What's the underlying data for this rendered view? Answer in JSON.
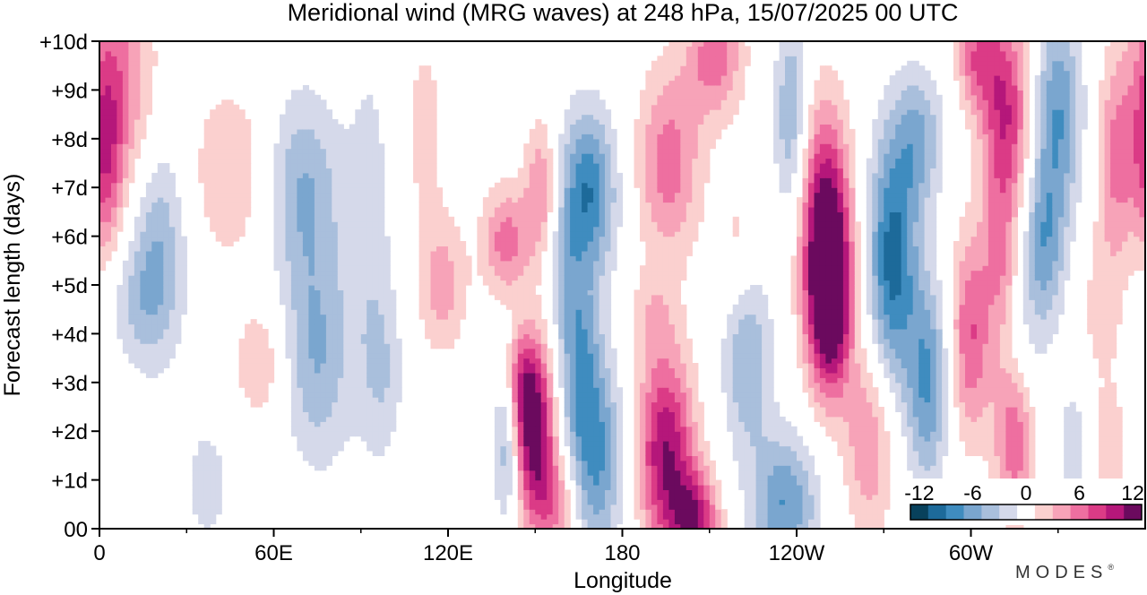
{
  "chart_data": {
    "type": "heatmap",
    "title": "Meridional wind (MRG waves) at  248 hPa,  15/07/2025  00 UTC",
    "xlabel": "Longitude",
    "ylabel": "Forecast length (days)",
    "x_ticks": [
      {
        "lon": 0,
        "label": "0"
      },
      {
        "lon": 60,
        "label": "60E"
      },
      {
        "lon": 120,
        "label": "120E"
      },
      {
        "lon": 180,
        "label": "180"
      },
      {
        "lon": 240,
        "label": "120W"
      },
      {
        "lon": 300,
        "label": "60W"
      }
    ],
    "x_minor_ticks": [
      30,
      90,
      150,
      210,
      270,
      330
    ],
    "xlim": [
      0,
      360
    ],
    "y_ticks": [
      {
        "day": 0,
        "label": "00"
      },
      {
        "day": 1,
        "label": "+1d"
      },
      {
        "day": 2,
        "label": "+2d"
      },
      {
        "day": 3,
        "label": "+3d"
      },
      {
        "day": 4,
        "label": "+4d"
      },
      {
        "day": 5,
        "label": "+5d"
      },
      {
        "day": 6,
        "label": "+6d"
      },
      {
        "day": 7,
        "label": "+7d"
      },
      {
        "day": 8,
        "label": "+8d"
      },
      {
        "day": 9,
        "label": "+9d"
      },
      {
        "day": 10,
        "label": "+10d"
      }
    ],
    "ylim": [
      0,
      10
    ],
    "colorbar": {
      "labels": [
        {
          "value": -12,
          "label": "-12"
        },
        {
          "value": -6,
          "label": "-6"
        },
        {
          "value": 0,
          "label": "0"
        },
        {
          "value": 6,
          "label": "6"
        },
        {
          "value": 12,
          "label": "12"
        }
      ],
      "levels": [
        -14,
        -12,
        -10,
        -8,
        -6,
        -4,
        -2,
        2,
        4,
        6,
        8,
        10,
        12,
        14
      ],
      "colors": [
        "#08415c",
        "#1d6a9a",
        "#3f8cbf",
        "#7aa6cf",
        "#a9bfdc",
        "#d5d9ea",
        "#ffffff",
        "#fbd0cf",
        "#f7a3b8",
        "#ee6fa0",
        "#db3b86",
        "#b5177a",
        "#6b0a5e"
      ]
    },
    "blobs": [
      {
        "lon": 6,
        "day": 9.0,
        "rx": 9,
        "ry": 1.8,
        "peak": 7
      },
      {
        "lon": 2,
        "day": 7.5,
        "rx": 4,
        "ry": 1.5,
        "peak": 6
      },
      {
        "lon": 20,
        "day": 5.8,
        "rx": 7,
        "ry": 1.6,
        "peak": -6
      },
      {
        "lon": 12,
        "day": 4.6,
        "rx": 8,
        "ry": 0.9,
        "peak": -3
      },
      {
        "lon": 45,
        "day": 7.3,
        "rx": 10,
        "ry": 1.3,
        "peak": 4
      },
      {
        "lon": 55,
        "day": 3.4,
        "rx": 6,
        "ry": 0.8,
        "peak": 4
      },
      {
        "lon": 37,
        "day": 0.9,
        "rx": 6,
        "ry": 1.0,
        "peak": -3
      },
      {
        "lon": 70,
        "day": 7.0,
        "rx": 9,
        "ry": 1.4,
        "peak": -6
      },
      {
        "lon": 75,
        "day": 3.6,
        "rx": 8,
        "ry": 1.6,
        "peak": -6
      },
      {
        "lon": 93,
        "day": 6.0,
        "rx": 6,
        "ry": 3.0,
        "peak": -3
      },
      {
        "lon": 98,
        "day": 3.2,
        "rx": 5,
        "ry": 1.2,
        "peak": -3
      },
      {
        "lon": 118,
        "day": 5.0,
        "rx": 6,
        "ry": 1.0,
        "peak": 5
      },
      {
        "lon": 112,
        "day": 8.2,
        "rx": 5,
        "ry": 1.5,
        "peak": 3
      },
      {
        "lon": 140,
        "day": 5.9,
        "rx": 6,
        "ry": 0.8,
        "peak": 7
      },
      {
        "lon": 152,
        "day": 7.0,
        "rx": 4,
        "ry": 1.0,
        "peak": 6
      },
      {
        "lon": 150,
        "day": 2.0,
        "rx": 5,
        "ry": 1.3,
        "peak": 13
      },
      {
        "lon": 145,
        "day": 3.0,
        "rx": 4,
        "ry": 0.8,
        "peak": 6
      },
      {
        "lon": 158,
        "day": 0.5,
        "rx": 6,
        "ry": 0.8,
        "peak": 6
      },
      {
        "lon": 140,
        "day": 1.8,
        "rx": 3,
        "ry": 1.2,
        "peak": -6
      },
      {
        "lon": 168,
        "day": 6.9,
        "rx": 7,
        "ry": 1.2,
        "peak": -10
      },
      {
        "lon": 170,
        "day": 1.5,
        "rx": 7,
        "ry": 1.5,
        "peak": -9
      },
      {
        "lon": 165,
        "day": 3.7,
        "rx": 5,
        "ry": 1.2,
        "peak": -6
      },
      {
        "lon": 160,
        "day": 5.2,
        "rx": 4,
        "ry": 0.9,
        "peak": -3
      },
      {
        "lon": 195,
        "day": 1.6,
        "rx": 7,
        "ry": 1.4,
        "peak": 12
      },
      {
        "lon": 205,
        "day": 0.2,
        "rx": 6,
        "ry": 0.7,
        "peak": 10
      },
      {
        "lon": 196,
        "day": 7.5,
        "rx": 8,
        "ry": 1.4,
        "peak": 7
      },
      {
        "lon": 212,
        "day": 9.7,
        "rx": 7,
        "ry": 0.9,
        "peak": 7
      },
      {
        "lon": 190,
        "day": 4.3,
        "rx": 6,
        "ry": 0.7,
        "peak": 3
      },
      {
        "lon": 220,
        "day": 5.8,
        "rx": 5,
        "ry": 1.0,
        "peak": 3
      },
      {
        "lon": 223,
        "day": 3.5,
        "rx": 6,
        "ry": 1.4,
        "peak": -6
      },
      {
        "lon": 236,
        "day": 0.5,
        "rx": 8,
        "ry": 1.0,
        "peak": -8
      },
      {
        "lon": 238,
        "day": 8.5,
        "rx": 4,
        "ry": 1.5,
        "peak": -6
      },
      {
        "lon": 250,
        "day": 5.9,
        "rx": 6,
        "ry": 1.8,
        "peak": 15
      },
      {
        "lon": 252,
        "day": 4.5,
        "rx": 5,
        "ry": 1.2,
        "peak": 9
      },
      {
        "lon": 265,
        "day": 1.8,
        "rx": 6,
        "ry": 1.4,
        "peak": 6
      },
      {
        "lon": 273,
        "day": 5.5,
        "rx": 6,
        "ry": 1.8,
        "peak": -11
      },
      {
        "lon": 285,
        "day": 3.0,
        "rx": 5,
        "ry": 1.5,
        "peak": -8
      },
      {
        "lon": 282,
        "day": 8.0,
        "rx": 6,
        "ry": 1.0,
        "peak": -6
      },
      {
        "lon": 300,
        "day": 4.0,
        "rx": 5,
        "ry": 1.5,
        "peak": 8
      },
      {
        "lon": 312,
        "day": 8.5,
        "rx": 6,
        "ry": 1.5,
        "peak": 10
      },
      {
        "lon": 302,
        "day": 9.7,
        "rx": 5,
        "ry": 0.8,
        "peak": 7
      },
      {
        "lon": 310,
        "day": 5.5,
        "rx": 4,
        "ry": 1.2,
        "peak": 5
      },
      {
        "lon": 315,
        "day": 2.0,
        "rx": 5,
        "ry": 1.3,
        "peak": 8
      },
      {
        "lon": 330,
        "day": 8.5,
        "rx": 6,
        "ry": 1.5,
        "peak": -8
      },
      {
        "lon": 325,
        "day": 5.8,
        "rx": 5,
        "ry": 1.2,
        "peak": -7
      },
      {
        "lon": 318,
        "day": 3.5,
        "rx": 5,
        "ry": 1.0,
        "peak": -3
      },
      {
        "lon": 350,
        "day": 7.5,
        "rx": 5,
        "ry": 1.5,
        "peak": 6
      },
      {
        "lon": 345,
        "day": 4.5,
        "rx": 5,
        "ry": 1.0,
        "peak": 3
      },
      {
        "lon": 348,
        "day": 1.5,
        "rx": 4,
        "ry": 1.0,
        "peak": 4
      },
      {
        "lon": 335,
        "day": 1.7,
        "rx": 3,
        "ry": 0.8,
        "peak": -4
      }
    ]
  },
  "brand": {
    "name": "MODES",
    "mark": "®"
  }
}
